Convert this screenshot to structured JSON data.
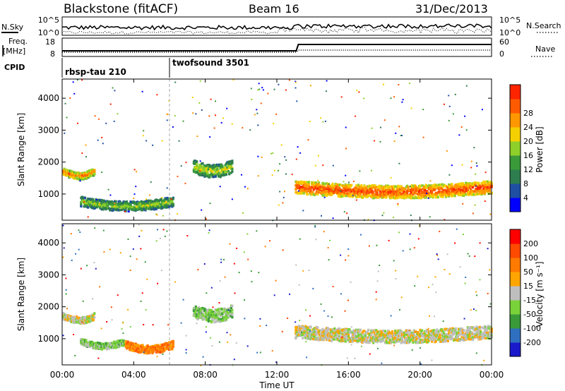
{
  "header": {
    "station": "Blackstone (fitACF)",
    "beam": "Beam 16",
    "date": "31/Dec/2013"
  },
  "panels": {
    "nsky_label": "N.Sky",
    "nsky_ticks": [
      "10^5",
      "10^0"
    ],
    "nsearch_label": "N.Search",
    "nsearch_ticks": [
      "10^5",
      "10^0"
    ],
    "freq_label_1": "Freq.",
    "freq_label_2": "[MHz]",
    "freq_ticks": [
      "18",
      "8"
    ],
    "nave_label": "Nave",
    "nave_ticks": [
      "60",
      "0"
    ],
    "cpid_label": "CPID",
    "cpid_modes": [
      {
        "name": "rbsp-tau 210",
        "start_hour": 0
      },
      {
        "name": "twofsound 3501",
        "start_hour": 6.0
      }
    ]
  },
  "chart_data": [
    {
      "type": "heatmap",
      "panel": "power",
      "ylabel": "Slant Range [km]",
      "ylim": [
        180,
        4600
      ],
      "y_ticks": [
        "1000",
        "2000",
        "3000",
        "4000"
      ],
      "y_tick_values": [
        1000,
        2000,
        3000,
        4000
      ],
      "colorbar_label": "Power [dB]",
      "colorbar_ticks": [
        "4",
        "8",
        "12",
        "16",
        "20",
        "24",
        "28"
      ],
      "colorbar_colors": [
        "#0000ff",
        "#1f4fa3",
        "#2e7d4f",
        "#3a9a3a",
        "#8fcf2a",
        "#f5d000",
        "#ff9800",
        "#ff5a00",
        "#ff2400"
      ],
      "echo_bands": [
        {
          "start_hour": 0.0,
          "end_hour": 1.8,
          "range_km": 1750,
          "width_km": 220,
          "level": 0.85
        },
        {
          "start_hour": 1.0,
          "end_hour": 6.2,
          "range_km": 800,
          "width_km": 300,
          "level": 0.55
        },
        {
          "start_hour": 7.3,
          "end_hour": 9.5,
          "range_km": 1900,
          "width_km": 400,
          "level": 0.6
        },
        {
          "start_hour": 13.0,
          "end_hour": 24.0,
          "range_km": 1250,
          "width_km": 400,
          "level": 0.95
        }
      ]
    },
    {
      "type": "heatmap",
      "panel": "velocity",
      "ylabel": "Slant Range [km]",
      "xlabel": "Time UT",
      "ylim": [
        180,
        4600
      ],
      "y_ticks": [
        "1000",
        "2000",
        "3000",
        "4000"
      ],
      "y_tick_values": [
        1000,
        2000,
        3000,
        4000
      ],
      "x_ticks": [
        "00:00",
        "04:00",
        "08:00",
        "12:00",
        "16:00",
        "20:00",
        "00:00"
      ],
      "x_tick_values": [
        0,
        4,
        8,
        12,
        16,
        20,
        24
      ],
      "colorbar_label": "Velocity [m s⁻¹]",
      "colorbar_ticks": [
        "200",
        "100",
        "50",
        "15",
        "-15",
        "-50",
        "-100",
        "-200"
      ],
      "colorbar_colors": [
        "#1a1acc",
        "#2f6fbf",
        "#3a9a3a",
        "#7ad23a",
        "#bebebe",
        "#ffa500",
        "#ff7a00",
        "#ff4a00",
        "#ff0000"
      ],
      "echo_bands": [
        {
          "start_hour": 0.0,
          "end_hour": 1.8,
          "range_km": 1750,
          "width_km": 200,
          "color_index": 4
        },
        {
          "start_hour": 1.0,
          "end_hour": 3.5,
          "range_km": 950,
          "width_km": 200,
          "color_index": 3
        },
        {
          "start_hour": 3.5,
          "end_hour": 6.2,
          "range_km": 850,
          "width_km": 250,
          "color_index": 6
        },
        {
          "start_hour": 7.3,
          "end_hour": 9.5,
          "range_km": 1900,
          "width_km": 400,
          "color_index": 3
        },
        {
          "start_hour": 13.0,
          "end_hour": 24.0,
          "range_km": 1250,
          "width_km": 400,
          "color_index": 4
        }
      ]
    }
  ]
}
